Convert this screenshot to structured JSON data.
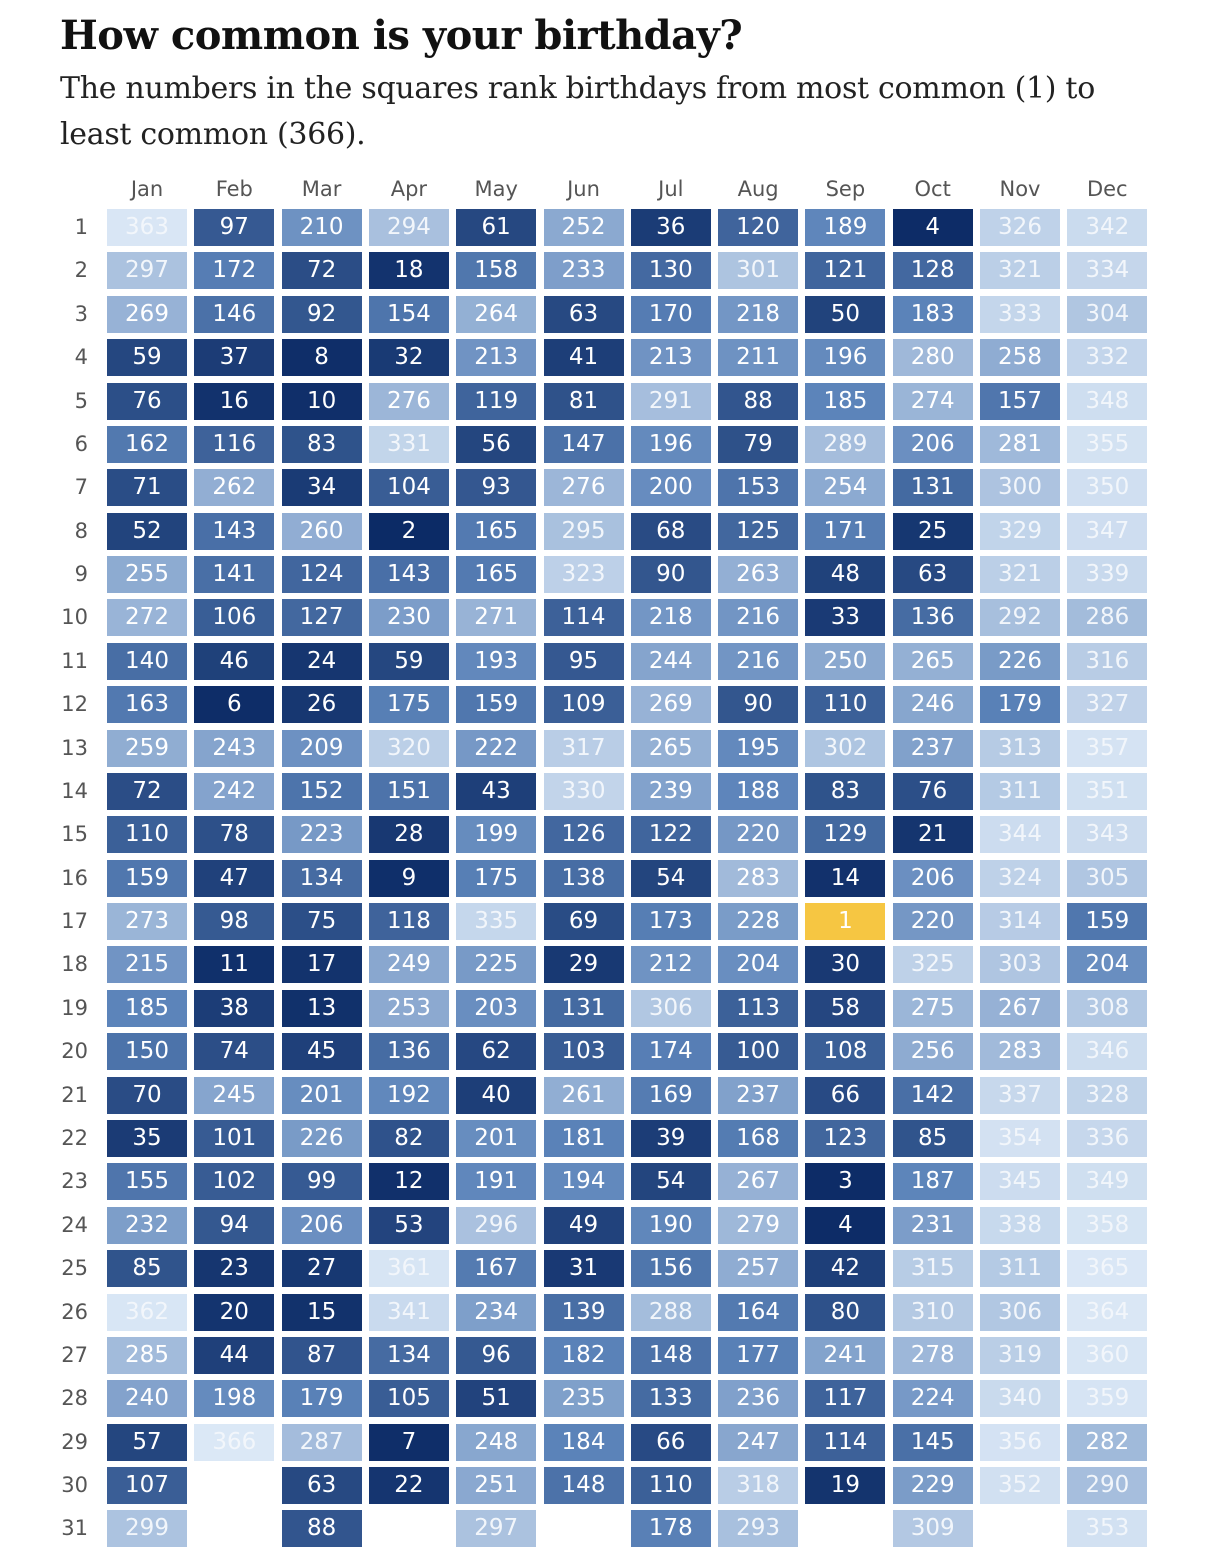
{
  "title": "How common is your birthday?",
  "subtitle": "The numbers in the squares rank birthdays from most common (1) to least common (366).",
  "highlight_color": "#f6c642",
  "color_scale": {
    "most_common": "#0c2b66",
    "least_common": "#dbe8f6"
  },
  "chart_data": {
    "type": "heatmap",
    "title": "How common is your birthday?",
    "subtitle": "The numbers in the squares rank birthdays from most common (1) to least common (366).",
    "x_categories": [
      "Jan",
      "Feb",
      "Mar",
      "Apr",
      "May",
      "Jun",
      "Jul",
      "Aug",
      "Sep",
      "Oct",
      "Nov",
      "Dec"
    ],
    "y_categories": [
      "1",
      "2",
      "3",
      "4",
      "5",
      "6",
      "7",
      "8",
      "9",
      "10",
      "11",
      "12",
      "13",
      "14",
      "15",
      "16",
      "17",
      "18",
      "19",
      "20",
      "21",
      "22",
      "23",
      "24",
      "25",
      "26",
      "27",
      "28",
      "29",
      "30",
      "31"
    ],
    "value_range": [
      1,
      366
    ],
    "highlighted_value": 1,
    "values": [
      [
        363,
        297,
        269,
        59,
        76,
        162,
        71,
        52,
        255,
        272,
        140,
        163,
        259,
        72,
        110,
        159,
        273,
        215,
        185,
        150,
        70,
        35,
        155,
        232,
        85,
        362,
        285,
        240,
        57,
        107,
        299
      ],
      [
        97,
        172,
        146,
        37,
        16,
        116,
        262,
        143,
        141,
        106,
        46,
        6,
        243,
        242,
        78,
        47,
        98,
        11,
        38,
        74,
        245,
        101,
        102,
        94,
        23,
        20,
        44,
        198,
        366,
        null,
        null
      ],
      [
        210,
        72,
        92,
        8,
        10,
        83,
        34,
        260,
        124,
        127,
        24,
        26,
        209,
        152,
        223,
        134,
        75,
        17,
        13,
        45,
        201,
        226,
        99,
        206,
        27,
        15,
        87,
        179,
        287,
        63,
        88
      ],
      [
        294,
        18,
        154,
        32,
        276,
        331,
        104,
        2,
        143,
        230,
        59,
        175,
        320,
        151,
        28,
        9,
        118,
        249,
        253,
        136,
        192,
        82,
        12,
        53,
        361,
        341,
        134,
        105,
        7,
        22,
        null
      ],
      [
        61,
        158,
        264,
        213,
        119,
        56,
        93,
        165,
        165,
        271,
        193,
        159,
        222,
        43,
        199,
        175,
        335,
        225,
        203,
        62,
        40,
        201,
        191,
        296,
        167,
        234,
        96,
        51,
        248,
        251,
        297
      ],
      [
        252,
        233,
        63,
        41,
        81,
        147,
        276,
        295,
        323,
        114,
        95,
        109,
        317,
        330,
        126,
        138,
        69,
        29,
        131,
        103,
        261,
        181,
        194,
        49,
        31,
        139,
        182,
        235,
        184,
        148,
        null
      ],
      [
        36,
        130,
        170,
        213,
        291,
        196,
        200,
        68,
        90,
        218,
        244,
        269,
        265,
        239,
        122,
        54,
        173,
        212,
        306,
        174,
        169,
        39,
        54,
        190,
        156,
        288,
        148,
        133,
        66,
        110,
        178
      ],
      [
        120,
        301,
        218,
        211,
        88,
        79,
        153,
        125,
        263,
        216,
        216,
        90,
        195,
        188,
        220,
        283,
        228,
        204,
        113,
        100,
        237,
        168,
        267,
        279,
        257,
        164,
        177,
        236,
        247,
        318,
        293
      ],
      [
        189,
        121,
        50,
        196,
        185,
        289,
        254,
        171,
        48,
        33,
        250,
        110,
        302,
        83,
        129,
        14,
        1,
        30,
        58,
        108,
        66,
        123,
        3,
        4,
        42,
        80,
        241,
        117,
        114,
        19,
        null
      ],
      [
        4,
        128,
        183,
        280,
        274,
        206,
        131,
        25,
        63,
        136,
        265,
        246,
        237,
        76,
        21,
        206,
        220,
        325,
        275,
        256,
        142,
        85,
        187,
        231,
        315,
        310,
        278,
        224,
        145,
        229,
        309
      ],
      [
        326,
        321,
        333,
        258,
        157,
        281,
        300,
        329,
        321,
        292,
        226,
        179,
        313,
        311,
        344,
        324,
        314,
        303,
        267,
        283,
        337,
        354,
        345,
        338,
        311,
        306,
        319,
        340,
        356,
        352,
        null
      ],
      [
        342,
        334,
        304,
        332,
        348,
        355,
        350,
        347,
        339,
        286,
        316,
        327,
        357,
        351,
        343,
        305,
        159,
        204,
        308,
        346,
        328,
        336,
        349,
        358,
        365,
        364,
        360,
        359,
        282,
        290,
        353
      ]
    ]
  }
}
